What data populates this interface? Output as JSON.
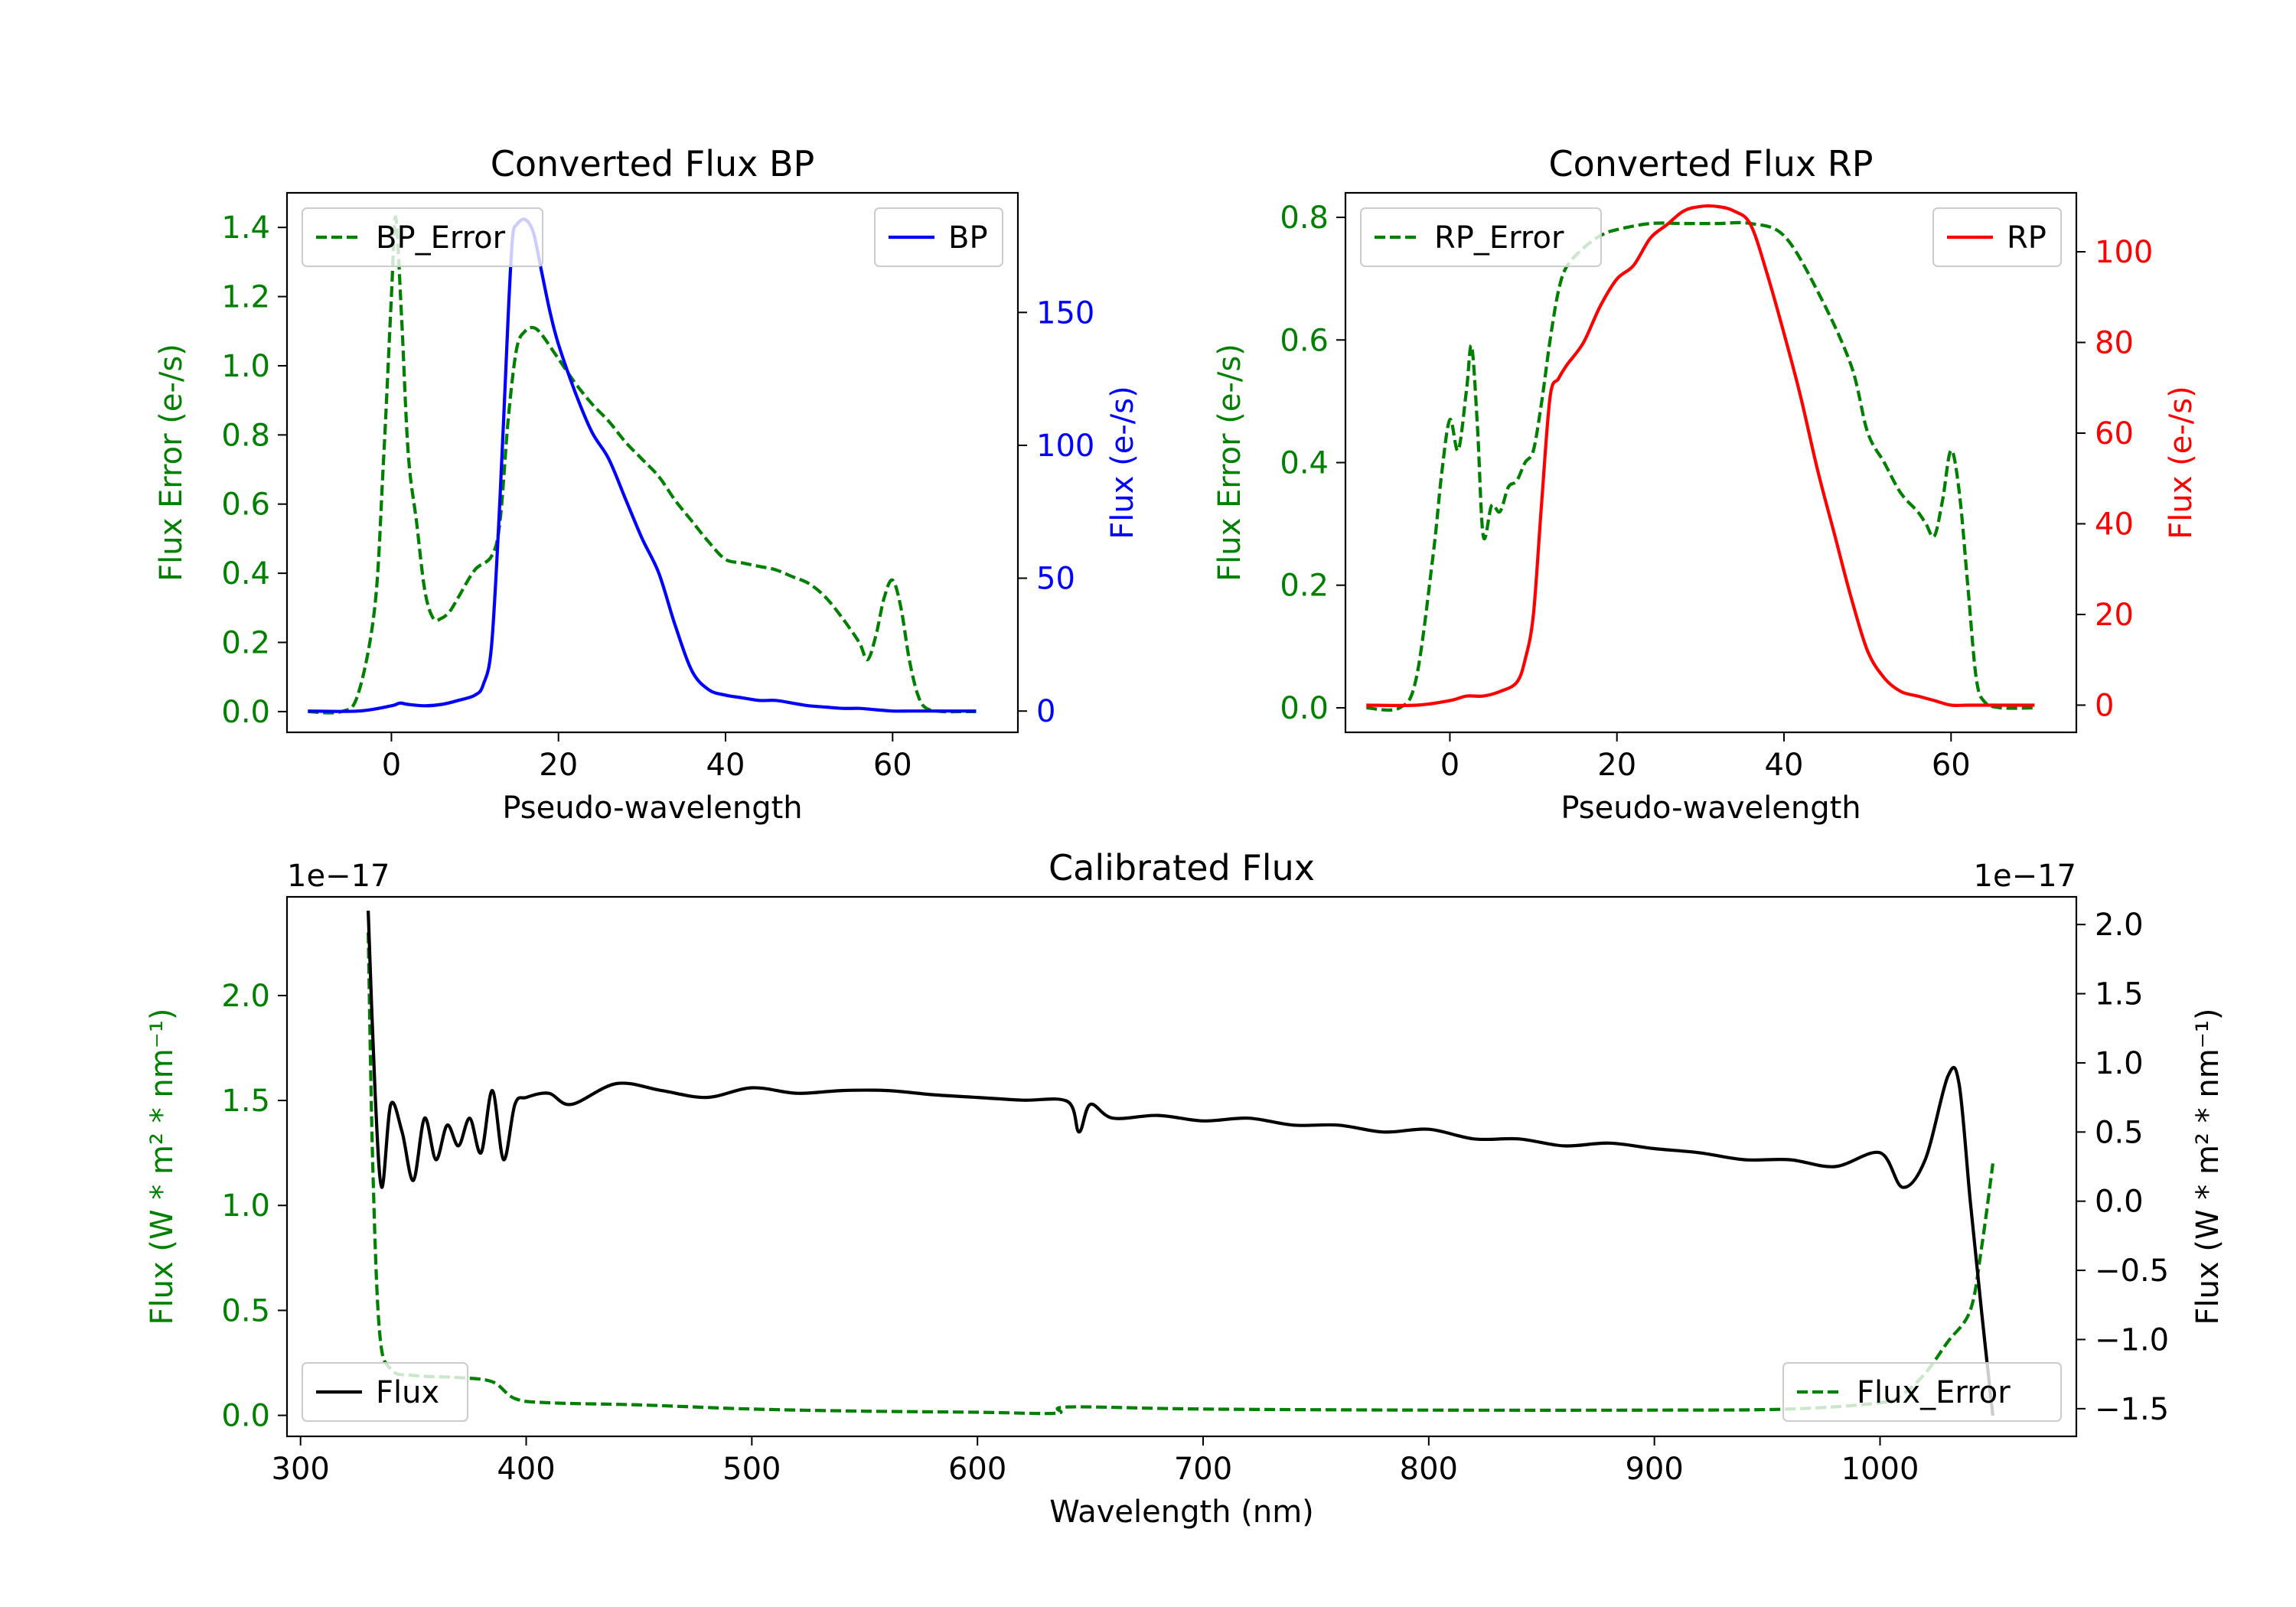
{
  "chart_data": [
    {
      "type": "line",
      "title": "Converted Flux BP",
      "xlabel": "Pseudo-wavelength",
      "ylabel_left": "Flux Error (e-/s)",
      "ylabel_right": "Flux (e-/s)",
      "xlim": [
        -12.5,
        75
      ],
      "ylim_left": [
        -0.06,
        1.5
      ],
      "ylim_right": [
        -8,
        195
      ],
      "xticks": [
        0,
        20,
        40,
        60
      ],
      "yticks_left": [
        0.0,
        0.2,
        0.4,
        0.6,
        0.8,
        1.0,
        1.2,
        1.4
      ],
      "yticks_right": [
        0,
        50,
        100,
        150
      ],
      "colors": {
        "left_axis": "#008000",
        "right_axis": "#0000ff",
        "error": "#008000",
        "flux": "#0000ff"
      },
      "legend_left": {
        "label": "BP_Error",
        "placement": "upper left"
      },
      "legend_right": {
        "label": "BP",
        "placement": "upper right"
      },
      "series": [
        {
          "name": "BP_Error",
          "axis": "left",
          "style": "dashed",
          "x": [
            -10,
            -6,
            -4,
            -2,
            -1,
            0,
            0.5,
            1.2,
            2,
            3,
            4,
            5,
            6,
            7,
            8,
            10,
            12,
            13,
            14,
            15,
            16,
            17,
            18,
            20,
            22,
            24,
            26,
            28,
            30,
            32,
            34,
            36,
            38,
            40,
            42,
            44,
            46,
            48,
            50,
            52,
            54,
            56,
            57,
            58,
            59,
            60,
            61,
            62,
            63,
            64,
            66,
            68,
            70
          ],
          "y": [
            0.0,
            0.0,
            0.05,
            0.3,
            0.7,
            1.2,
            1.43,
            1.15,
            0.75,
            0.55,
            0.35,
            0.27,
            0.27,
            0.29,
            0.33,
            0.41,
            0.45,
            0.55,
            0.85,
            1.05,
            1.1,
            1.11,
            1.09,
            1.02,
            0.95,
            0.89,
            0.84,
            0.78,
            0.73,
            0.68,
            0.61,
            0.55,
            0.49,
            0.44,
            0.43,
            0.42,
            0.41,
            0.39,
            0.37,
            0.33,
            0.27,
            0.2,
            0.15,
            0.22,
            0.33,
            0.38,
            0.3,
            0.15,
            0.05,
            0.01,
            0.0,
            0.0,
            0.0
          ]
        },
        {
          "name": "BP",
          "axis": "right",
          "style": "solid",
          "x": [
            -10,
            -4,
            0,
            1,
            2,
            4,
            6,
            8,
            10,
            11,
            12,
            13,
            14,
            14.5,
            15,
            16,
            17,
            18,
            19,
            20,
            22,
            24,
            26,
            28,
            30,
            32,
            34,
            36,
            38,
            40,
            42,
            44,
            46,
            48,
            50,
            52,
            54,
            56,
            58,
            60,
            62,
            64,
            66,
            70
          ],
          "y": [
            0,
            0,
            2,
            3,
            2.5,
            2,
            2.5,
            4,
            6,
            10,
            25,
            80,
            150,
            178,
            183,
            185,
            180,
            165,
            150,
            138,
            120,
            105,
            95,
            80,
            65,
            52,
            32,
            15,
            8,
            6,
            5,
            4,
            4,
            3,
            2,
            1.5,
            1,
            1,
            0.5,
            0,
            0,
            0,
            0,
            0
          ]
        }
      ]
    },
    {
      "type": "line",
      "title": "Converted Flux RP",
      "xlabel": "Pseudo-wavelength",
      "ylabel_left": "Flux Error (e-/s)",
      "ylabel_right": "Flux (e-/s)",
      "xlim": [
        -12.5,
        75
      ],
      "ylim_left": [
        -0.04,
        0.84
      ],
      "ylim_right": [
        -6,
        113
      ],
      "xticks": [
        0,
        20,
        40,
        60
      ],
      "yticks_left": [
        0.0,
        0.2,
        0.4,
        0.6,
        0.8
      ],
      "yticks_right": [
        0,
        20,
        40,
        60,
        80,
        100
      ],
      "colors": {
        "left_axis": "#008000",
        "right_axis": "#ff0000",
        "error": "#008000",
        "flux": "#ff0000"
      },
      "legend_left": {
        "label": "RP_Error",
        "placement": "upper left"
      },
      "legend_right": {
        "label": "RP",
        "placement": "upper right"
      },
      "series": [
        {
          "name": "RP_Error",
          "axis": "left",
          "style": "dashed",
          "x": [
            -10,
            -6,
            -4,
            -2,
            -1,
            0,
            1,
            2,
            2.6,
            3.3,
            4,
            5,
            6,
            7,
            8,
            9,
            10,
            11,
            12,
            13,
            14,
            16,
            18,
            20,
            24,
            28,
            32,
            36,
            40,
            44,
            48,
            50,
            52,
            54,
            56,
            57,
            58,
            59,
            60,
            61,
            62,
            63,
            64,
            66,
            70
          ],
          "y": [
            0.0,
            0.0,
            0.05,
            0.25,
            0.38,
            0.47,
            0.42,
            0.52,
            0.59,
            0.46,
            0.28,
            0.33,
            0.32,
            0.36,
            0.37,
            0.4,
            0.42,
            0.5,
            0.6,
            0.68,
            0.72,
            0.75,
            0.77,
            0.78,
            0.79,
            0.79,
            0.79,
            0.79,
            0.77,
            0.68,
            0.56,
            0.45,
            0.4,
            0.35,
            0.32,
            0.3,
            0.28,
            0.34,
            0.42,
            0.35,
            0.2,
            0.05,
            0.01,
            0.0,
            0.0
          ]
        },
        {
          "name": "RP",
          "axis": "right",
          "style": "solid",
          "x": [
            -10,
            -4,
            0,
            2,
            4,
            6,
            8,
            9,
            10,
            11,
            12,
            13,
            14,
            16,
            18,
            20,
            22,
            24,
            26,
            28,
            30,
            32,
            34,
            36,
            38,
            40,
            42,
            44,
            46,
            48,
            50,
            52,
            54,
            56,
            58,
            60,
            62,
            64,
            66,
            70
          ],
          "y": [
            0,
            0,
            1,
            2,
            2,
            3,
            5,
            10,
            20,
            45,
            68,
            72,
            75,
            80,
            88,
            94,
            97,
            103,
            106,
            109,
            110,
            110,
            109,
            106,
            95,
            82,
            68,
            52,
            38,
            24,
            12,
            6,
            3,
            2,
            1,
            0,
            0,
            0,
            0,
            0
          ]
        }
      ]
    },
    {
      "type": "line",
      "title": "Calibrated Flux",
      "xlabel": "Wavelength (nm)",
      "ylabel_left": "Flux (W * m² * nm⁻¹)",
      "ylabel_right": "Flux (W * m² * nm⁻¹)",
      "offset_left": "1e−17",
      "offset_right": "1e−17",
      "xlim": [
        294,
        1087
      ],
      "ylim_left": [
        -0.1,
        2.47
      ],
      "ylim_right": [
        -1.7,
        2.2
      ],
      "xticks": [
        300,
        400,
        500,
        600,
        700,
        800,
        900,
        1000
      ],
      "yticks_left": [
        0.0,
        0.5,
        1.0,
        1.5,
        2.0
      ],
      "yticks_right": [
        -1.5,
        -1.0,
        -0.5,
        0.0,
        0.5,
        1.0,
        1.5,
        2.0
      ],
      "colors": {
        "left_axis": "#008000",
        "right_axis": "#000000",
        "error": "#008000",
        "flux": "#000000"
      },
      "legend_left": {
        "label": "Flux",
        "placement": "lower left"
      },
      "legend_right": {
        "label": "Flux_Error",
        "placement": "lower right"
      },
      "series": [
        {
          "name": "Flux_Error",
          "axis": "left",
          "style": "dashed",
          "x": [
            330,
            332,
            335,
            340,
            350,
            370,
            385,
            395,
            410,
            450,
            500,
            550,
            600,
            635,
            640,
            700,
            800,
            900,
            960,
            1000,
            1010,
            1020,
            1030,
            1040,
            1045,
            1050
          ],
          "y": [
            2.3,
            1.2,
            0.4,
            0.22,
            0.19,
            0.18,
            0.16,
            0.08,
            0.06,
            0.05,
            0.03,
            0.02,
            0.015,
            0.01,
            0.04,
            0.03,
            0.025,
            0.025,
            0.03,
            0.06,
            0.1,
            0.2,
            0.35,
            0.5,
            0.8,
            1.2
          ]
        },
        {
          "name": "Flux",
          "axis": "right",
          "style": "solid",
          "x": [
            330,
            333,
            336,
            340,
            345,
            350,
            355,
            360,
            365,
            370,
            375,
            380,
            385,
            390,
            395,
            400,
            410,
            420,
            440,
            460,
            480,
            500,
            520,
            540,
            560,
            580,
            600,
            620,
            640,
            645,
            650,
            660,
            680,
            700,
            720,
            740,
            760,
            780,
            800,
            820,
            840,
            860,
            880,
            900,
            920,
            940,
            960,
            980,
            1000,
            1010,
            1020,
            1030,
            1035,
            1040,
            1045,
            1050
          ],
          "y": [
            2.1,
            0.8,
            0.1,
            0.7,
            0.5,
            0.15,
            0.6,
            0.3,
            0.55,
            0.4,
            0.6,
            0.35,
            0.8,
            0.3,
            0.7,
            0.75,
            0.78,
            0.7,
            0.85,
            0.8,
            0.75,
            0.82,
            0.78,
            0.8,
            0.8,
            0.77,
            0.75,
            0.73,
            0.72,
            0.5,
            0.7,
            0.6,
            0.62,
            0.58,
            0.6,
            0.55,
            0.55,
            0.5,
            0.52,
            0.45,
            0.45,
            0.4,
            0.42,
            0.38,
            0.35,
            0.3,
            0.3,
            0.25,
            0.35,
            0.1,
            0.3,
            0.9,
            0.85,
            0.0,
            -0.8,
            -1.55
          ]
        }
      ]
    }
  ]
}
